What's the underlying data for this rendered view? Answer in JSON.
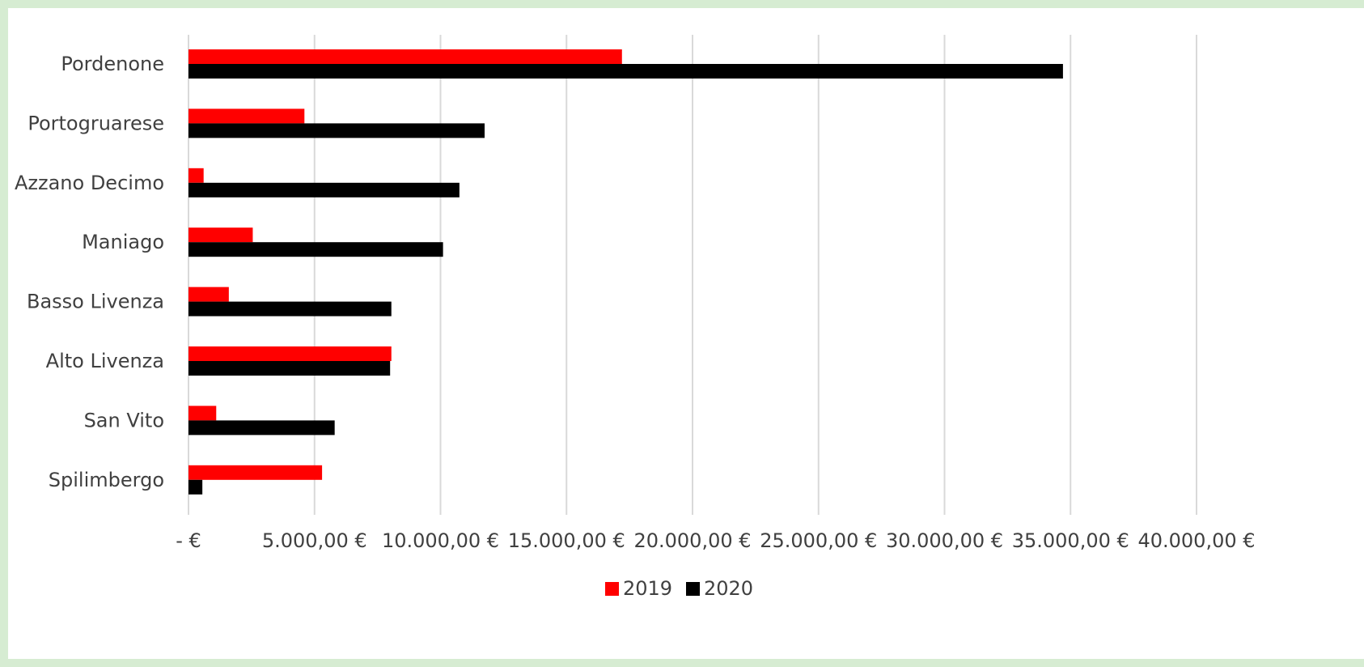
{
  "chart_data": {
    "type": "bar",
    "orientation": "horizontal",
    "categories": [
      "Pordenone",
      "Portogruarese",
      "Azzano Decimo",
      "Maniago",
      "Basso Livenza",
      "Alto Livenza",
      "San Vito",
      "Spilimbergo"
    ],
    "series": [
      {
        "name": "2019",
        "color": "#ff0000",
        "values": [
          17200,
          4600,
          600,
          2550,
          1600,
          8050,
          1100,
          5300
        ]
      },
      {
        "name": "2020",
        "color": "#000000",
        "values": [
          34700,
          11750,
          10750,
          10100,
          8050,
          8000,
          5800,
          550
        ]
      }
    ],
    "xlim": [
      0,
      40000
    ],
    "ticks": [
      {
        "value": 0,
        "label": "-   €"
      },
      {
        "value": 5000,
        "label": "5.000,00 €"
      },
      {
        "value": 10000,
        "label": "10.000,00 €"
      },
      {
        "value": 15000,
        "label": "15.000,00 €"
      },
      {
        "value": 20000,
        "label": "20.000,00 €"
      },
      {
        "value": 25000,
        "label": "25.000,00 €"
      },
      {
        "value": 30000,
        "label": "30.000,00 €"
      },
      {
        "value": 35000,
        "label": "35.000,00 €"
      },
      {
        "value": 40000,
        "label": "40.000,00 €"
      }
    ],
    "grid": true,
    "legend_position": "bottom",
    "title": "",
    "xlabel": "",
    "ylabel": ""
  }
}
